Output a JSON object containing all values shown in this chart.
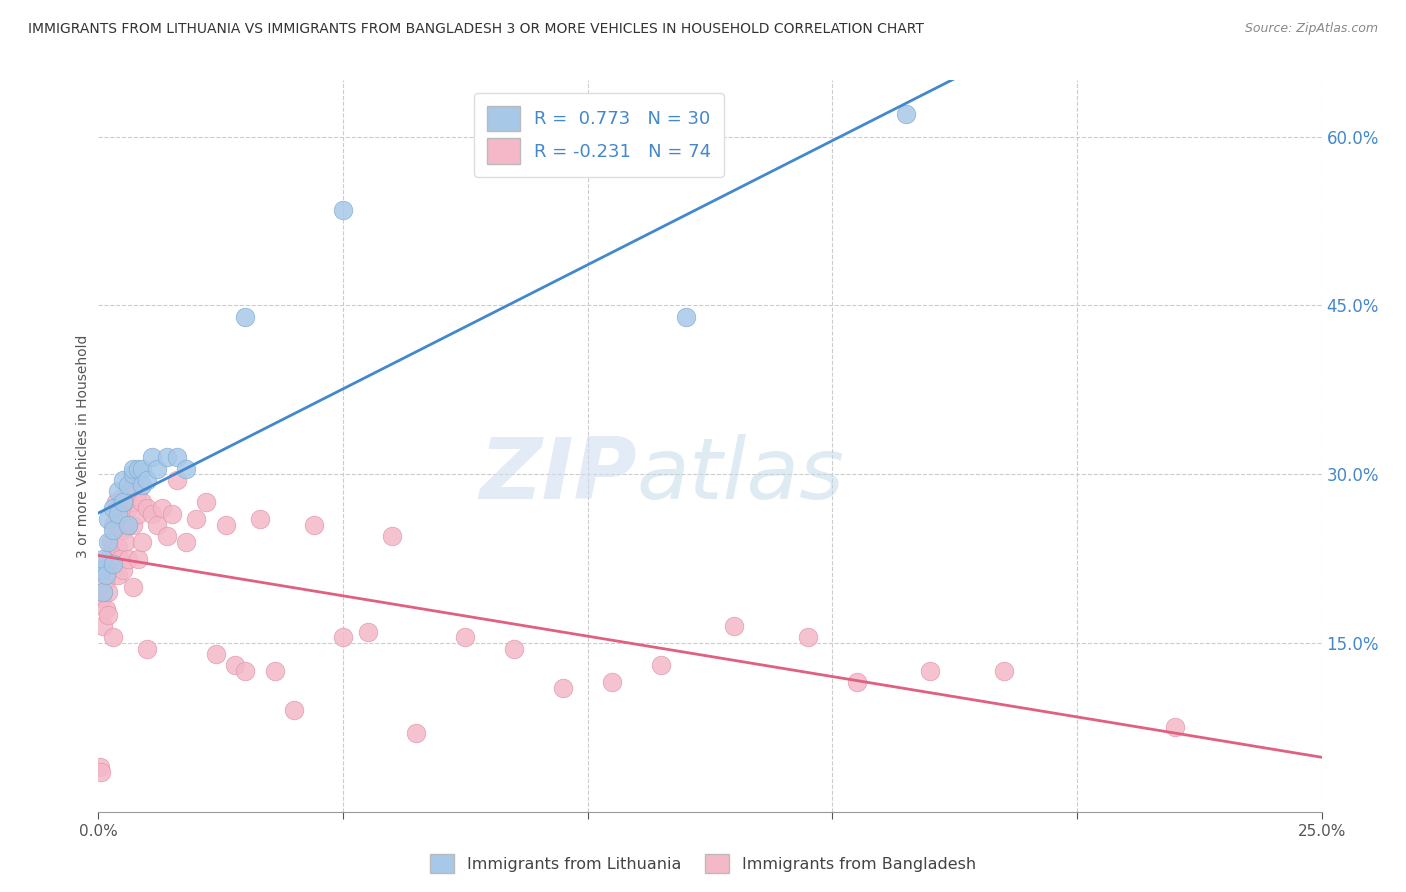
{
  "title": "IMMIGRANTS FROM LITHUANIA VS IMMIGRANTS FROM BANGLADESH 3 OR MORE VEHICLES IN HOUSEHOLD CORRELATION CHART",
  "source": "Source: ZipAtlas.com",
  "ylabel": "3 or more Vehicles in Household",
  "right_yticks": [
    0.15,
    0.3,
    0.45,
    0.6
  ],
  "right_yticklabels": [
    "15.0%",
    "30.0%",
    "45.0%",
    "60.0%"
  ],
  "legend_blue_R": "0.773",
  "legend_blue_N": "30",
  "legend_pink_R": "-0.231",
  "legend_pink_N": "74",
  "legend_label_blue": "Immigrants from Lithuania",
  "legend_label_pink": "Immigrants from Bangladesh",
  "watermark_zip": "ZIP",
  "watermark_atlas": "atlas",
  "blue_color": "#a8c8e8",
  "pink_color": "#f4b8c8",
  "blue_line_color": "#4488cc",
  "pink_line_color": "#e06080",
  "blue_edge_color": "#7aaad0",
  "pink_edge_color": "#e090a8",
  "xmin": 0.0,
  "xmax": 0.25,
  "ymin": 0.0,
  "ymax": 0.65,
  "blue_x": [
    0.0005,
    0.001,
    0.001,
    0.0015,
    0.002,
    0.002,
    0.003,
    0.003,
    0.003,
    0.004,
    0.004,
    0.005,
    0.005,
    0.006,
    0.006,
    0.007,
    0.007,
    0.008,
    0.009,
    0.009,
    0.01,
    0.011,
    0.012,
    0.014,
    0.016,
    0.018,
    0.03,
    0.05,
    0.12,
    0.165
  ],
  "blue_y": [
    0.215,
    0.195,
    0.225,
    0.21,
    0.24,
    0.26,
    0.25,
    0.27,
    0.22,
    0.285,
    0.265,
    0.275,
    0.295,
    0.29,
    0.255,
    0.3,
    0.305,
    0.305,
    0.305,
    0.29,
    0.295,
    0.315,
    0.305,
    0.315,
    0.315,
    0.305,
    0.44,
    0.535,
    0.44,
    0.62
  ],
  "pink_x": [
    0.0003,
    0.0005,
    0.0008,
    0.001,
    0.001,
    0.001,
    0.0015,
    0.0015,
    0.002,
    0.002,
    0.002,
    0.002,
    0.0025,
    0.003,
    0.003,
    0.003,
    0.0035,
    0.004,
    0.004,
    0.004,
    0.004,
    0.0045,
    0.005,
    0.005,
    0.005,
    0.005,
    0.0055,
    0.006,
    0.006,
    0.006,
    0.006,
    0.007,
    0.007,
    0.007,
    0.007,
    0.008,
    0.008,
    0.008,
    0.009,
    0.009,
    0.01,
    0.01,
    0.011,
    0.012,
    0.013,
    0.014,
    0.015,
    0.016,
    0.018,
    0.02,
    0.022,
    0.024,
    0.026,
    0.028,
    0.03,
    0.033,
    0.036,
    0.04,
    0.044,
    0.05,
    0.055,
    0.06,
    0.065,
    0.075,
    0.085,
    0.095,
    0.105,
    0.115,
    0.13,
    0.145,
    0.155,
    0.17,
    0.185,
    0.22
  ],
  "pink_y": [
    0.04,
    0.035,
    0.19,
    0.215,
    0.195,
    0.165,
    0.205,
    0.18,
    0.225,
    0.215,
    0.195,
    0.175,
    0.24,
    0.255,
    0.235,
    0.155,
    0.275,
    0.27,
    0.255,
    0.235,
    0.21,
    0.225,
    0.28,
    0.265,
    0.25,
    0.215,
    0.24,
    0.285,
    0.27,
    0.255,
    0.225,
    0.295,
    0.275,
    0.255,
    0.2,
    0.285,
    0.265,
    0.225,
    0.275,
    0.24,
    0.27,
    0.145,
    0.265,
    0.255,
    0.27,
    0.245,
    0.265,
    0.295,
    0.24,
    0.26,
    0.275,
    0.14,
    0.255,
    0.13,
    0.125,
    0.26,
    0.125,
    0.09,
    0.255,
    0.155,
    0.16,
    0.245,
    0.07,
    0.155,
    0.145,
    0.11,
    0.115,
    0.13,
    0.165,
    0.155,
    0.115,
    0.125,
    0.125,
    0.075
  ]
}
